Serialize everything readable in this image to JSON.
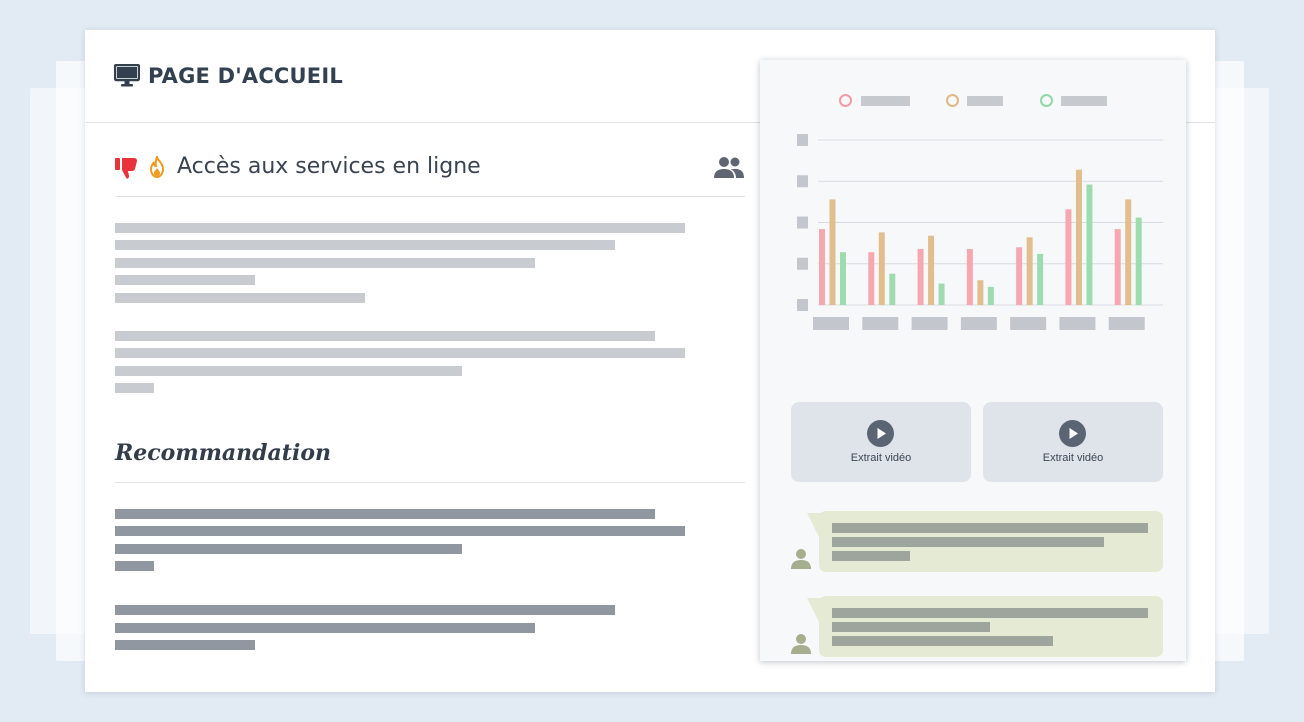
{
  "header": {
    "title": "PAGE D'ACCUEIL",
    "icon": "monitor-icon"
  },
  "section": {
    "title": "Accès aux services en ligne",
    "icons": [
      "thumbs-down-icon",
      "flame-icon",
      "users-icon"
    ]
  },
  "recommendation": {
    "title": "Recommandation"
  },
  "panel": {
    "legend_colors": [
      "#f29aa5",
      "#e0b888",
      "#8fd9a6"
    ],
    "chart_data": {
      "type": "bar",
      "categories": [
        "",
        "",
        "",
        "",
        "",
        "",
        ""
      ],
      "series": [
        {
          "color": "#f6a7b0",
          "values": [
            46,
            32,
            34,
            34,
            35,
            58,
            46
          ]
        },
        {
          "color": "#e2bd8d",
          "values": [
            64,
            44,
            42,
            15,
            41,
            82,
            64
          ]
        },
        {
          "color": "#9edcb0",
          "values": [
            32,
            19,
            13,
            11,
            31,
            73,
            53
          ]
        }
      ],
      "ylim": [
        0,
        100
      ],
      "grid": true
    },
    "videos": [
      {
        "label": "Extrait vidéo"
      },
      {
        "label": "Extrait vidéo"
      }
    ]
  },
  "colors": {
    "thumb": "#e8323c",
    "flame": "#f09a1e",
    "dark_text": "#33404f"
  }
}
